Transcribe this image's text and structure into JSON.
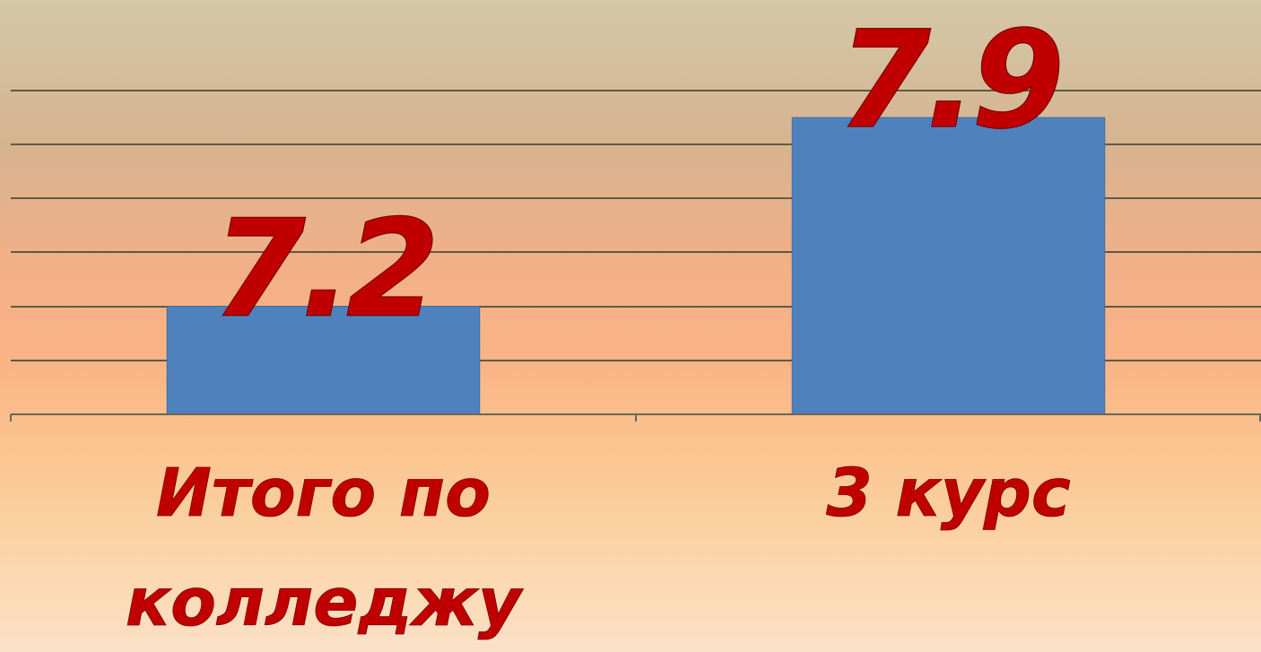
{
  "chart_data": {
    "type": "bar",
    "categories": [
      "Итого по колледжу",
      "3 курс"
    ],
    "category_lines": [
      [
        "Итого по",
        "колледжу"
      ],
      [
        "3 курс"
      ]
    ],
    "values": [
      7.2,
      7.9
    ],
    "data_labels": [
      "7.2",
      "7.9"
    ],
    "title": "",
    "xlabel": "",
    "ylabel": "",
    "ylim": [
      6.8,
      8.0
    ],
    "grid": true,
    "legend": "none",
    "colors": {
      "bar": "#4f81bd",
      "label": "#c00000",
      "gridline": "#5e5a48"
    }
  }
}
